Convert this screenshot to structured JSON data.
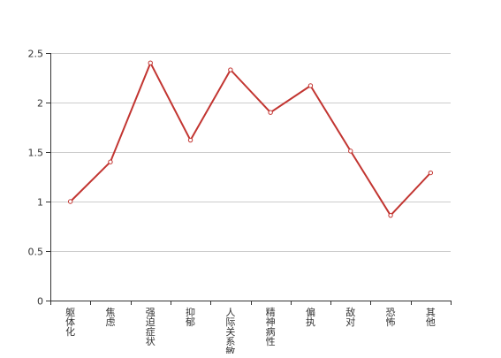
{
  "chart_data": {
    "type": "line",
    "title": "",
    "xlabel": "",
    "ylabel": "",
    "categories": [
      "躯体化",
      "焦虑",
      "强迫症状",
      "抑郁",
      "人际关系敏感",
      "精神病性",
      "偏执",
      "敌对",
      "恐怖",
      "其他"
    ],
    "series": [
      {
        "values": [
          1.0,
          1.4,
          2.4,
          1.62,
          2.33,
          1.9,
          2.17,
          1.51,
          0.86,
          1.29
        ]
      }
    ],
    "ylim": [
      0,
      2.5
    ],
    "yticks": [
      0,
      0.5,
      1,
      1.5,
      2,
      2.5
    ],
    "ytick_labels": [
      "0",
      "0.5",
      "1",
      "1.5",
      "2",
      "2.5"
    ],
    "grid": true,
    "legend": "none",
    "colors": {
      "line": "#c23531",
      "point_fill": "#ffffff",
      "grid": "#cccccc",
      "axis": "#333333"
    }
  }
}
